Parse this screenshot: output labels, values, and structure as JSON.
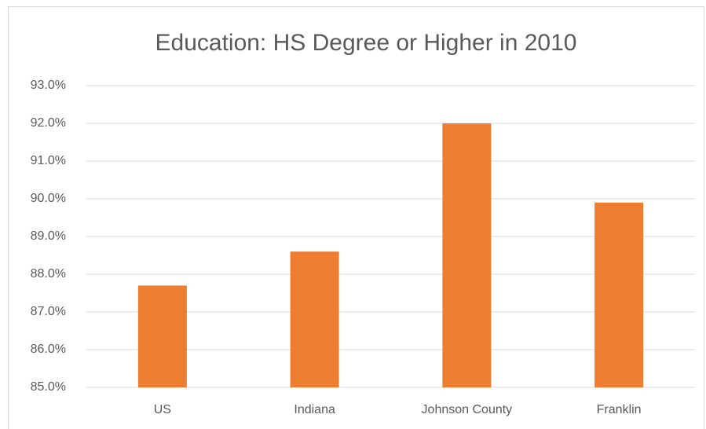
{
  "chart_data": {
    "type": "bar",
    "title": "Education:  HS Degree or Higher in 2010",
    "categories": [
      "US",
      "Indiana",
      "Johnson County",
      "Franklin"
    ],
    "values": [
      87.7,
      88.6,
      92.0,
      89.9
    ],
    "color": "#ed7d31",
    "ylim": [
      85,
      93
    ],
    "yticks": [
      {
        "value": 85,
        "label": "85.0%"
      },
      {
        "value": 86,
        "label": "86.0%"
      },
      {
        "value": 87,
        "label": "87.0%"
      },
      {
        "value": 88,
        "label": "88.0%"
      },
      {
        "value": 89,
        "label": "89.0%"
      },
      {
        "value": 90,
        "label": "90.0%"
      },
      {
        "value": 91,
        "label": "91.0%"
      },
      {
        "value": 92,
        "label": "92.0%"
      },
      {
        "value": 93,
        "label": "93.0%"
      }
    ],
    "grid": true
  }
}
